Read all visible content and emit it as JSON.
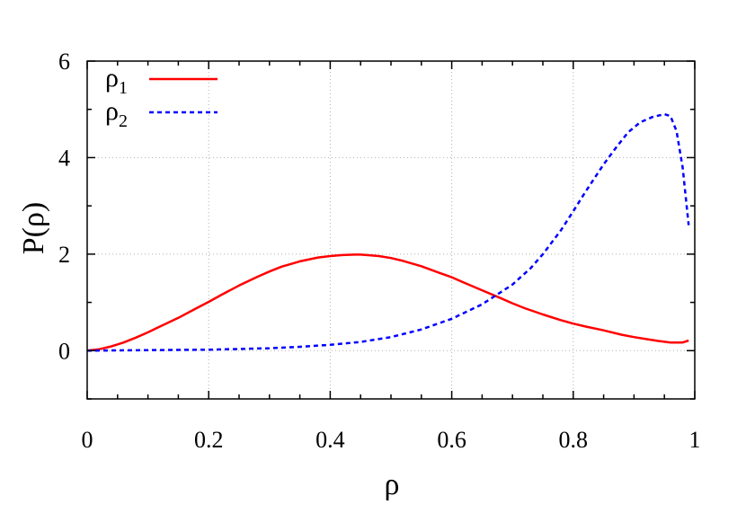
{
  "chart_data": {
    "type": "line",
    "xlabel": "ρ",
    "ylabel": "P(ρ)",
    "xlim": [
      0,
      1
    ],
    "ylim": [
      -1,
      6
    ],
    "grid": true,
    "legend_position": "top-left",
    "x_ticks": [
      {
        "value": 0,
        "label": "0"
      },
      {
        "value": 0.2,
        "label": "0.2"
      },
      {
        "value": 0.4,
        "label": "0.4"
      },
      {
        "value": 0.6,
        "label": "0.6"
      },
      {
        "value": 0.8,
        "label": "0.8"
      },
      {
        "value": 1,
        "label": "1"
      }
    ],
    "y_ticks": [
      {
        "value": 0,
        "label": "0"
      },
      {
        "value": 2,
        "label": "2"
      },
      {
        "value": 4,
        "label": "4"
      },
      {
        "value": 6,
        "label": "6"
      }
    ],
    "series": [
      {
        "name": "ρ",
        "subscript": "1",
        "color": "#ff0000",
        "dash": "solid",
        "x": [
          0,
          0.02,
          0.04,
          0.06,
          0.08,
          0.1,
          0.12,
          0.15,
          0.18,
          0.2,
          0.22,
          0.25,
          0.28,
          0.3,
          0.32,
          0.35,
          0.38,
          0.4,
          0.42,
          0.44,
          0.45,
          0.46,
          0.48,
          0.5,
          0.52,
          0.55,
          0.58,
          0.6,
          0.62,
          0.65,
          0.68,
          0.7,
          0.72,
          0.75,
          0.78,
          0.8,
          0.82,
          0.85,
          0.88,
          0.9,
          0.92,
          0.94,
          0.96,
          0.98,
          0.99
        ],
        "y": [
          0,
          0.03,
          0.09,
          0.17,
          0.27,
          0.38,
          0.5,
          0.68,
          0.88,
          1.01,
          1.15,
          1.35,
          1.53,
          1.64,
          1.74,
          1.85,
          1.93,
          1.96,
          1.98,
          1.99,
          1.99,
          1.98,
          1.96,
          1.92,
          1.86,
          1.75,
          1.61,
          1.52,
          1.41,
          1.25,
          1.09,
          0.98,
          0.88,
          0.75,
          0.63,
          0.56,
          0.5,
          0.42,
          0.33,
          0.28,
          0.24,
          0.2,
          0.17,
          0.17,
          0.21
        ]
      },
      {
        "name": "ρ",
        "subscript": "2",
        "color": "#0000ff",
        "dash": "dashed",
        "x": [
          0,
          0.1,
          0.2,
          0.3,
          0.35,
          0.4,
          0.45,
          0.5,
          0.55,
          0.6,
          0.65,
          0.7,
          0.73,
          0.75,
          0.78,
          0.8,
          0.82,
          0.85,
          0.87,
          0.89,
          0.91,
          0.93,
          0.95,
          0.96,
          0.97,
          0.98,
          0.99
        ],
        "y": [
          0,
          0.01,
          0.02,
          0.05,
          0.08,
          0.12,
          0.18,
          0.28,
          0.44,
          0.66,
          0.96,
          1.37,
          1.71,
          2.0,
          2.5,
          2.89,
          3.29,
          3.86,
          4.2,
          4.52,
          4.73,
          4.84,
          4.9,
          4.86,
          4.55,
          3.8,
          2.6
        ]
      }
    ]
  }
}
